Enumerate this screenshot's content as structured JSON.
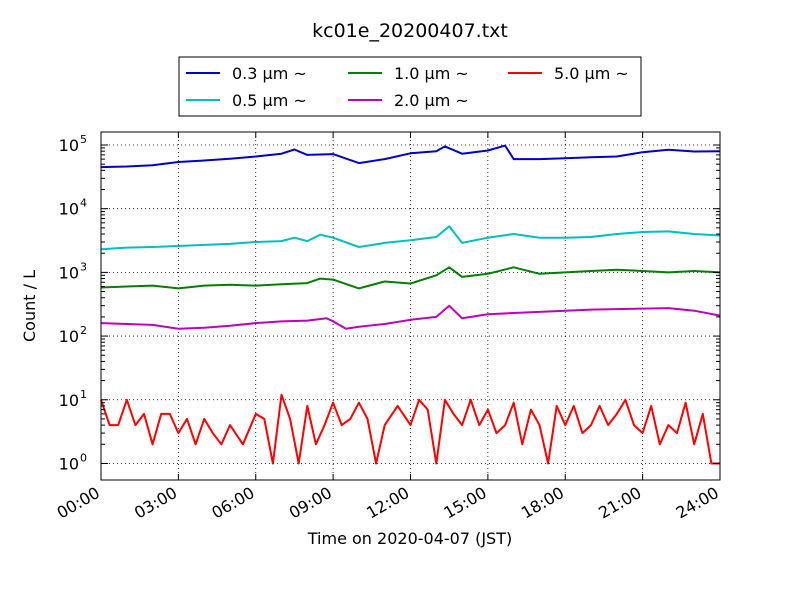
{
  "chart_data": {
    "type": "line",
    "title": "kc01e_20200407.txt",
    "xlabel": "Time on 2020-04-07 (JST)",
    "ylabel": "Count / L",
    "yscale": "log",
    "ylim": [
      0.55,
      160000
    ],
    "xlim": [
      "00:00",
      "24:00"
    ],
    "x_ticks": [
      "00:00",
      "03:00",
      "06:00",
      "09:00",
      "12:00",
      "15:00",
      "18:00",
      "21:00",
      "24:00"
    ],
    "y_ticks": [
      1,
      10,
      100,
      1000,
      10000,
      100000
    ],
    "y_tick_bases": [
      "10",
      "10",
      "10",
      "10",
      "10",
      "10"
    ],
    "y_tick_exps": [
      "0",
      "1",
      "2",
      "3",
      "4",
      "5"
    ],
    "grid": true,
    "legend_position": "top",
    "legend_columns": 3,
    "series": [
      {
        "name": "0.3 μm ~",
        "color": "#0000cc",
        "points": [
          [
            "00:00",
            45000
          ],
          [
            "01:00",
            46000
          ],
          [
            "02:00",
            48000
          ],
          [
            "03:00",
            54000
          ],
          [
            "04:00",
            57000
          ],
          [
            "05:00",
            61000
          ],
          [
            "06:00",
            66000
          ],
          [
            "07:00",
            73000
          ],
          [
            "07:30",
            85000
          ],
          [
            "08:00",
            70000
          ],
          [
            "09:00",
            72000
          ],
          [
            "10:00",
            52000
          ],
          [
            "11:00",
            60000
          ],
          [
            "12:00",
            74000
          ],
          [
            "13:00",
            80000
          ],
          [
            "13:20",
            95000
          ],
          [
            "14:00",
            73000
          ],
          [
            "15:00",
            82000
          ],
          [
            "15:40",
            98000
          ],
          [
            "16:00",
            60000
          ],
          [
            "17:00",
            60000
          ],
          [
            "18:00",
            62000
          ],
          [
            "19:00",
            64000
          ],
          [
            "20:00",
            66000
          ],
          [
            "21:00",
            77000
          ],
          [
            "22:00",
            84000
          ],
          [
            "23:00",
            79000
          ],
          [
            "24:00",
            80000
          ]
        ]
      },
      {
        "name": "0.5 μm ~",
        "color": "#00bfbf",
        "points": [
          [
            "00:00",
            2300
          ],
          [
            "01:00",
            2450
          ],
          [
            "02:00",
            2500
          ],
          [
            "03:00",
            2600
          ],
          [
            "04:00",
            2700
          ],
          [
            "05:00",
            2800
          ],
          [
            "06:00",
            3000
          ],
          [
            "07:00",
            3100
          ],
          [
            "07:30",
            3500
          ],
          [
            "08:00",
            3100
          ],
          [
            "08:30",
            3900
          ],
          [
            "09:00",
            3500
          ],
          [
            "10:00",
            2500
          ],
          [
            "11:00",
            2900
          ],
          [
            "12:00",
            3200
          ],
          [
            "13:00",
            3600
          ],
          [
            "13:30",
            5300
          ],
          [
            "14:00",
            2900
          ],
          [
            "15:00",
            3500
          ],
          [
            "16:00",
            4000
          ],
          [
            "17:00",
            3500
          ],
          [
            "18:00",
            3500
          ],
          [
            "19:00",
            3600
          ],
          [
            "20:00",
            4000
          ],
          [
            "21:00",
            4300
          ],
          [
            "22:00",
            4400
          ],
          [
            "23:00",
            4000
          ],
          [
            "24:00",
            3800
          ]
        ]
      },
      {
        "name": "1.0 μm ~",
        "color": "#008000",
        "points": [
          [
            "00:00",
            580
          ],
          [
            "01:00",
            600
          ],
          [
            "02:00",
            620
          ],
          [
            "03:00",
            560
          ],
          [
            "04:00",
            620
          ],
          [
            "05:00",
            640
          ],
          [
            "06:00",
            620
          ],
          [
            "07:00",
            650
          ],
          [
            "08:00",
            680
          ],
          [
            "08:30",
            800
          ],
          [
            "09:00",
            770
          ],
          [
            "10:00",
            560
          ],
          [
            "11:00",
            720
          ],
          [
            "12:00",
            670
          ],
          [
            "13:00",
            900
          ],
          [
            "13:30",
            1200
          ],
          [
            "14:00",
            850
          ],
          [
            "15:00",
            950
          ],
          [
            "16:00",
            1200
          ],
          [
            "17:00",
            950
          ],
          [
            "18:00",
            1000
          ],
          [
            "19:00",
            1050
          ],
          [
            "20:00",
            1100
          ],
          [
            "21:00",
            1050
          ],
          [
            "22:00",
            1000
          ],
          [
            "23:00",
            1050
          ],
          [
            "24:00",
            1000
          ]
        ]
      },
      {
        "name": "2.0 μm ~",
        "color": "#bf00bf",
        "points": [
          [
            "00:00",
            160
          ],
          [
            "01:00",
            155
          ],
          [
            "02:00",
            150
          ],
          [
            "03:00",
            130
          ],
          [
            "04:00",
            135
          ],
          [
            "05:00",
            145
          ],
          [
            "06:00",
            160
          ],
          [
            "07:00",
            170
          ],
          [
            "08:00",
            175
          ],
          [
            "08:45",
            190
          ],
          [
            "09:00",
            170
          ],
          [
            "09:30",
            130
          ],
          [
            "10:00",
            140
          ],
          [
            "11:00",
            155
          ],
          [
            "12:00",
            180
          ],
          [
            "13:00",
            200
          ],
          [
            "13:30",
            300
          ],
          [
            "14:00",
            190
          ],
          [
            "15:00",
            220
          ],
          [
            "16:00",
            230
          ],
          [
            "17:00",
            240
          ],
          [
            "18:00",
            250
          ],
          [
            "19:00",
            260
          ],
          [
            "20:00",
            265
          ],
          [
            "21:00",
            270
          ],
          [
            "22:00",
            275
          ],
          [
            "23:00",
            250
          ],
          [
            "24:00",
            210
          ]
        ]
      },
      {
        "name": "5.0 μm ~",
        "color": "#ff0000",
        "points": [
          [
            "00:00",
            10
          ],
          [
            "00:20",
            4
          ],
          [
            "00:40",
            4
          ],
          [
            "01:00",
            10
          ],
          [
            "01:20",
            4
          ],
          [
            "01:40",
            6
          ],
          [
            "02:00",
            2
          ],
          [
            "02:20",
            6
          ],
          [
            "02:40",
            6
          ],
          [
            "03:00",
            3
          ],
          [
            "03:20",
            5
          ],
          [
            "03:40",
            2
          ],
          [
            "04:00",
            5
          ],
          [
            "04:20",
            3
          ],
          [
            "04:40",
            2
          ],
          [
            "05:00",
            4
          ],
          [
            "05:30",
            2
          ],
          [
            "06:00",
            6
          ],
          [
            "06:20",
            5
          ],
          [
            "06:40",
            1
          ],
          [
            "07:00",
            12
          ],
          [
            "07:20",
            5
          ],
          [
            "07:40",
            1
          ],
          [
            "08:00",
            8
          ],
          [
            "08:20",
            2
          ],
          [
            "08:40",
            4
          ],
          [
            "09:00",
            9
          ],
          [
            "09:20",
            4
          ],
          [
            "09:40",
            5
          ],
          [
            "10:00",
            9
          ],
          [
            "10:20",
            5
          ],
          [
            "10:40",
            1
          ],
          [
            "11:00",
            4
          ],
          [
            "11:30",
            8
          ],
          [
            "12:00",
            4
          ],
          [
            "12:20",
            10
          ],
          [
            "12:40",
            7
          ],
          [
            "13:00",
            1
          ],
          [
            "13:20",
            10
          ],
          [
            "13:40",
            6
          ],
          [
            "14:00",
            4
          ],
          [
            "14:20",
            10
          ],
          [
            "14:40",
            4
          ],
          [
            "15:00",
            7
          ],
          [
            "15:20",
            3
          ],
          [
            "15:40",
            4
          ],
          [
            "16:00",
            9
          ],
          [
            "16:20",
            2
          ],
          [
            "16:40",
            7
          ],
          [
            "17:00",
            4
          ],
          [
            "17:20",
            1
          ],
          [
            "17:40",
            8
          ],
          [
            "18:00",
            4
          ],
          [
            "18:20",
            8
          ],
          [
            "18:40",
            3
          ],
          [
            "19:00",
            4
          ],
          [
            "19:20",
            8
          ],
          [
            "19:40",
            4
          ],
          [
            "20:00",
            6
          ],
          [
            "20:20",
            10
          ],
          [
            "20:40",
            4
          ],
          [
            "21:00",
            3
          ],
          [
            "21:20",
            8
          ],
          [
            "21:40",
            2
          ],
          [
            "22:00",
            4
          ],
          [
            "22:20",
            3
          ],
          [
            "22:40",
            9
          ],
          [
            "23:00",
            2
          ],
          [
            "23:20",
            6
          ],
          [
            "23:40",
            1
          ],
          [
            "24:00",
            1
          ]
        ]
      }
    ]
  }
}
